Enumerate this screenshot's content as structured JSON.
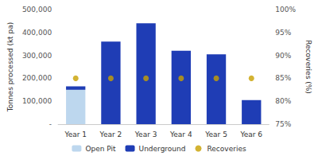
{
  "chart_data": {
    "type": "bar",
    "stacked": true,
    "grid": false,
    "legend": "bottom",
    "categories": [
      "Year 1",
      "Year 2",
      "Year 3",
      "Year 4",
      "Year 5",
      "Year 6"
    ],
    "ylabel": "Tonnes processed (kt pa)",
    "y2label": "Recoveries (%)",
    "ylim": [
      0,
      500000
    ],
    "yticks": [
      {
        "value": 0,
        "label": "-"
      },
      {
        "value": 100000,
        "label": "100,000"
      },
      {
        "value": 200000,
        "label": "200,000"
      },
      {
        "value": 300000,
        "label": "300,000"
      },
      {
        "value": 400000,
        "label": "400,000"
      },
      {
        "value": 500000,
        "label": "500,000"
      }
    ],
    "y2lim": [
      75,
      100
    ],
    "y2ticks": [
      {
        "value": 75,
        "label": "75%"
      },
      {
        "value": 80,
        "label": "80%"
      },
      {
        "value": 85,
        "label": "85%"
      },
      {
        "value": 90,
        "label": "90%"
      },
      {
        "value": 95,
        "label": "95%"
      },
      {
        "value": 100,
        "label": "100%"
      }
    ],
    "series": [
      {
        "name": "Open Pit",
        "type": "bar",
        "color": "#bdd7ee",
        "values": [
          150000,
          0,
          0,
          0,
          0,
          0
        ]
      },
      {
        "name": "Underground",
        "type": "bar",
        "color": "#1f3db5",
        "values": [
          15000,
          360000,
          440000,
          320000,
          305000,
          105000
        ]
      },
      {
        "name": "Recoveries",
        "type": "scatter",
        "axis": "y2",
        "marker": "circle",
        "color": "#c8a000",
        "values": [
          85,
          85,
          85,
          85,
          85,
          85
        ]
      }
    ]
  }
}
